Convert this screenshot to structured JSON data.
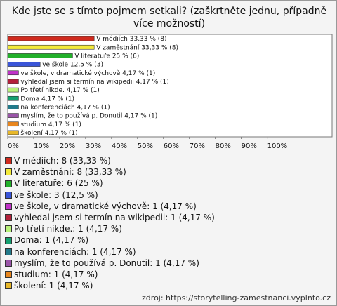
{
  "chart_data": {
    "type": "bar",
    "orientation": "horizontal",
    "title": "Kde jste se s tímto pojmem setkali? (zaškrtněte jednu, případně více možností)",
    "categories": [
      "V médiích",
      "V zaměstnání",
      "V literatuře",
      "ve škole",
      "ve škole, v dramatické výchově",
      "vyhledal jsem si termín na wikipedii",
      "Po třetí nikde.",
      "Doma",
      "na konferenciách",
      "myslím, že to používá p. Donutil",
      "studium",
      "školení"
    ],
    "values": [
      33.33,
      33.33,
      25,
      12.5,
      4.17,
      4.17,
      4.17,
      4.17,
      4.17,
      4.17,
      4.17,
      4.17
    ],
    "value_labels": [
      "V médiích 33,33 % (8)",
      "V zaměstnání 33,33 % (8)",
      "V literatuře 25 % (6)",
      "ve škole 12,5 % (3)",
      "ve škole, v dramatické výchově 4,17 % (1)",
      "vyhledal jsem si termín na wikipedii 4,17 % (1)",
      "Po třetí nikde. 4,17 % (1)",
      "Doma 4,17 % (1)",
      "na konferenciách 4,17 % (1)",
      "myslím, že to používá p. Donutil 4,17 % (1)",
      "studium 4,17 % (1)",
      "školení 4,17 % (1)"
    ],
    "legend_labels": [
      "V médiích: 8 (33,33 %)",
      "V zaměstnání: 8 (33,33 %)",
      "V literatuře: 6 (25 %)",
      "ve škole: 3 (12,5 %)",
      "ve škole, v dramatické výchově: 1 (4,17 %)",
      "vyhledal jsem si termín na wikipedii: 1 (4,17 %)",
      "Po třetí nikde.: 1 (4,17 %)",
      "Doma: 1 (4,17 %)",
      "na konferenciách: 1 (4,17 %)",
      "myslím, že to používá p. Donutil: 1 (4,17 %)",
      "studium: 1 (4,17 %)",
      "školení: 1 (4,17 %)"
    ],
    "colors": [
      "#d02a1e",
      "#f2e93a",
      "#22b02a",
      "#3a55d8",
      "#c032c8",
      "#b4203a",
      "#b8f27a",
      "#14a070",
      "#237a8a",
      "#9a55a8",
      "#e8861e",
      "#e8b82a"
    ],
    "xlim": [
      0,
      125
    ],
    "xticks": [
      {
        "value": 0,
        "label": "0%"
      },
      {
        "value": 10,
        "label": "10%"
      },
      {
        "value": 20,
        "label": "20%"
      },
      {
        "value": 30,
        "label": "30%"
      },
      {
        "value": 40,
        "label": "40%"
      },
      {
        "value": 50,
        "label": "50%"
      },
      {
        "value": 60,
        "label": "60%"
      },
      {
        "value": 70,
        "label": "70%"
      },
      {
        "value": 80,
        "label": "80%"
      },
      {
        "value": 90,
        "label": "90%"
      },
      {
        "value": 100,
        "label": "100%"
      }
    ],
    "source": "zdroj: https://storytelling-zamestnanci.vyplnto.cz"
  }
}
